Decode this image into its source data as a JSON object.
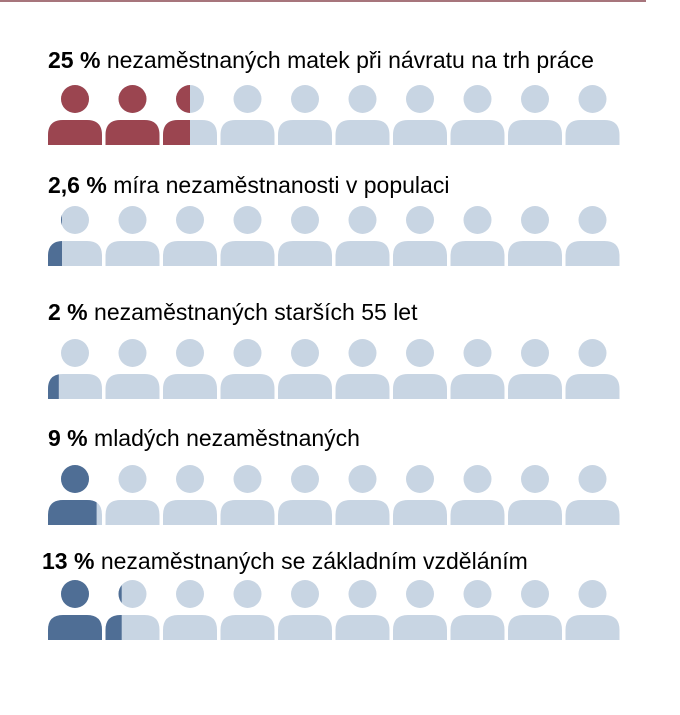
{
  "colors": {
    "background": "#ffffff",
    "empty": "#c8d5e3",
    "rule": "#a7757c"
  },
  "chart_data": {
    "type": "pictogram",
    "icons_per_row": 10,
    "unit": "%",
    "rows": [
      {
        "percent_label": "25 %",
        "text": "nezaměstnaných matek při návratu na trh práce",
        "value": 25,
        "color": "#9b4550"
      },
      {
        "percent_label": "2,6 %",
        "text": "míra nezaměstnanosti v populaci",
        "value": 2.6,
        "color": "#4f6e95"
      },
      {
        "percent_label": "2 %",
        "text": "nezaměstnaných starších 55 let",
        "value": 2,
        "color": "#4f6e95"
      },
      {
        "percent_label": "9 %",
        "text": "mladých nezaměstnaných",
        "value": 9,
        "color": "#4f6e95"
      },
      {
        "percent_label": "13 %",
        "text": "nezaměstnaných se základním vzděláním",
        "value": 13,
        "color": "#4f6e95"
      }
    ]
  }
}
